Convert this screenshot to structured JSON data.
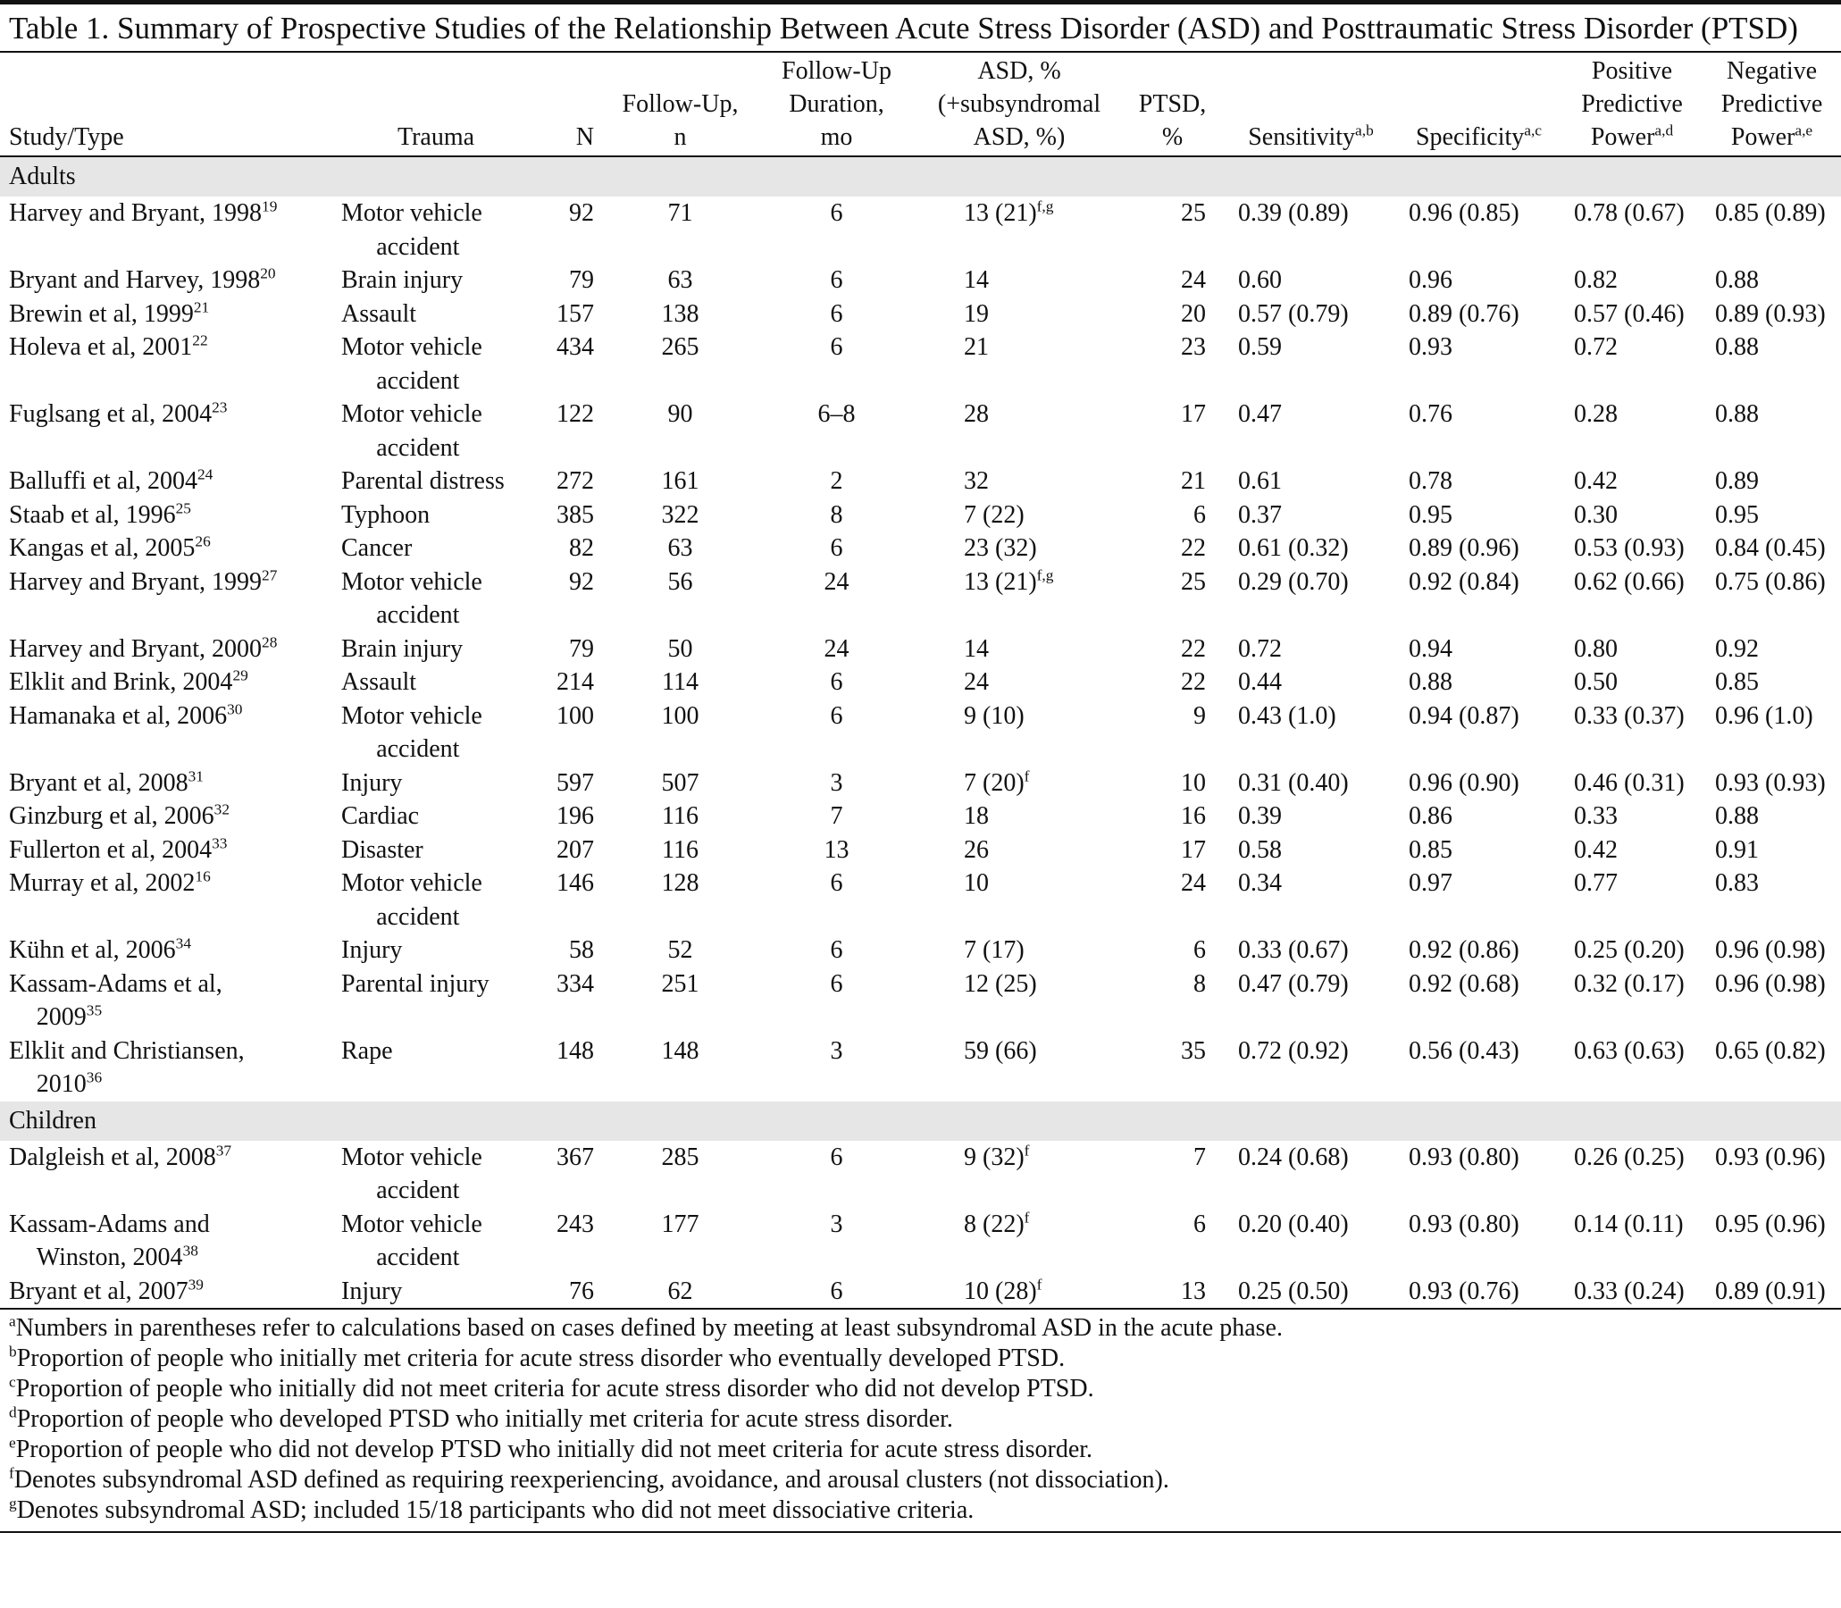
{
  "title": "Table 1. Summary of Prospective Studies of the Relationship Between Acute Stress Disorder (ASD) and Posttraumatic Stress Disorder (PTSD)",
  "columns": [
    {
      "lines": [
        "Study/Type"
      ]
    },
    {
      "lines": [
        "Trauma"
      ]
    },
    {
      "lines": [
        "N"
      ]
    },
    {
      "lines": [
        "Follow-Up,",
        "n"
      ]
    },
    {
      "lines": [
        "Follow-Up",
        "Duration,",
        "mo"
      ]
    },
    {
      "lines": [
        "ASD, %",
        "(+subsyndromal",
        "ASD, %)"
      ]
    },
    {
      "lines": [
        "PTSD,",
        "%"
      ]
    },
    {
      "lines": [
        "Sensitivity"
      ],
      "sup": "a,b"
    },
    {
      "lines": [
        "Specificity"
      ],
      "sup": "a,c"
    },
    {
      "lines": [
        "Positive",
        "Predictive",
        "Power"
      ],
      "sup": "a,d"
    },
    {
      "lines": [
        "Negative",
        "Predictive",
        "Power"
      ],
      "sup": "a,e"
    }
  ],
  "sections": [
    {
      "label": "Adults",
      "rows": [
        {
          "study": [
            "Harvey and Bryant, 1998"
          ],
          "ref": "19",
          "trauma": [
            "Motor vehicle",
            "accident"
          ],
          "n": "92",
          "follow_up": "71",
          "duration": "6",
          "asd": "13 (21)",
          "asd_note": "f,g",
          "ptsd": "25",
          "sensitivity": "0.39 (0.89)",
          "specificity": "0.96 (0.85)",
          "ppp": "0.78 (0.67)",
          "npp": "0.85 (0.89)"
        },
        {
          "study": [
            "Bryant and Harvey, 1998"
          ],
          "ref": "20",
          "trauma": [
            "Brain injury"
          ],
          "n": "79",
          "follow_up": "63",
          "duration": "6",
          "asd": "14",
          "ptsd": "24",
          "sensitivity": "0.60",
          "specificity": "0.96",
          "ppp": "0.82",
          "npp": "0.88"
        },
        {
          "study": [
            "Brewin et al, 1999"
          ],
          "ref": "21",
          "trauma": [
            "Assault"
          ],
          "n": "157",
          "follow_up": "138",
          "duration": "6",
          "asd": "19",
          "ptsd": "20",
          "sensitivity": "0.57 (0.79)",
          "specificity": "0.89 (0.76)",
          "ppp": "0.57 (0.46)",
          "npp": "0.89 (0.93)"
        },
        {
          "study": [
            "Holeva et al, 2001"
          ],
          "ref": "22",
          "trauma": [
            "Motor vehicle",
            "accident"
          ],
          "n": "434",
          "follow_up": "265",
          "duration": "6",
          "asd": "21",
          "ptsd": "23",
          "sensitivity": "0.59",
          "specificity": "0.93",
          "ppp": "0.72",
          "npp": "0.88"
        },
        {
          "study": [
            "Fuglsang et al, 2004"
          ],
          "ref": "23",
          "trauma": [
            "Motor vehicle",
            "accident"
          ],
          "n": "122",
          "follow_up": "90",
          "duration": "6–8",
          "asd": "28",
          "ptsd": "17",
          "sensitivity": "0.47",
          "specificity": "0.76",
          "ppp": "0.28",
          "npp": "0.88"
        },
        {
          "study": [
            "Balluffi et al, 2004"
          ],
          "ref": "24",
          "trauma": [
            "Parental distress"
          ],
          "n": "272",
          "follow_up": "161",
          "duration": "2",
          "asd": "32",
          "ptsd": "21",
          "sensitivity": "0.61",
          "specificity": "0.78",
          "ppp": "0.42",
          "npp": "0.89"
        },
        {
          "study": [
            "Staab et al, 1996"
          ],
          "ref": "25",
          "trauma": [
            "Typhoon"
          ],
          "n": "385",
          "follow_up": "322",
          "duration": "8",
          "asd": "7 (22)",
          "ptsd": "6",
          "sensitivity": "0.37",
          "specificity": "0.95",
          "ppp": "0.30",
          "npp": "0.95"
        },
        {
          "study": [
            "Kangas et al, 2005"
          ],
          "ref": "26",
          "trauma": [
            "Cancer"
          ],
          "n": "82",
          "follow_up": "63",
          "duration": "6",
          "asd": "23 (32)",
          "ptsd": "22",
          "sensitivity": "0.61 (0.32)",
          "specificity": "0.89 (0.96)",
          "ppp": "0.53 (0.93)",
          "npp": "0.84 (0.45)"
        },
        {
          "study": [
            "Harvey and Bryant, 1999"
          ],
          "ref": "27",
          "trauma": [
            "Motor vehicle",
            "accident"
          ],
          "n": "92",
          "follow_up": "56",
          "duration": "24",
          "asd": "13 (21)",
          "asd_note": "f,g",
          "ptsd": "25",
          "sensitivity": "0.29 (0.70)",
          "specificity": "0.92 (0.84)",
          "ppp": "0.62 (0.66)",
          "npp": "0.75 (0.86)"
        },
        {
          "study": [
            "Harvey and Bryant, 2000"
          ],
          "ref": "28",
          "trauma": [
            "Brain injury"
          ],
          "n": "79",
          "follow_up": "50",
          "duration": "24",
          "asd": "14",
          "ptsd": "22",
          "sensitivity": "0.72",
          "specificity": "0.94",
          "ppp": "0.80",
          "npp": "0.92"
        },
        {
          "study": [
            "Elklit and Brink, 2004"
          ],
          "ref": "29",
          "trauma": [
            "Assault"
          ],
          "n": "214",
          "follow_up": "114",
          "duration": "6",
          "asd": "24",
          "ptsd": "22",
          "sensitivity": "0.44",
          "specificity": "0.88",
          "ppp": "0.50",
          "npp": "0.85"
        },
        {
          "study": [
            "Hamanaka et al, 2006"
          ],
          "ref": "30",
          "trauma": [
            "Motor vehicle",
            "accident"
          ],
          "n": "100",
          "follow_up": "100",
          "duration": "6",
          "asd": "9 (10)",
          "ptsd": "9",
          "sensitivity": "0.43 (1.0)",
          "specificity": "0.94 (0.87)",
          "ppp": "0.33 (0.37)",
          "npp": "0.96 (1.0)"
        },
        {
          "study": [
            "Bryant et al, 2008"
          ],
          "ref": "31",
          "trauma": [
            "Injury"
          ],
          "n": "597",
          "follow_up": "507",
          "duration": "3",
          "asd": "7 (20)",
          "asd_note": "f",
          "ptsd": "10",
          "sensitivity": "0.31 (0.40)",
          "specificity": "0.96 (0.90)",
          "ppp": "0.46 (0.31)",
          "npp": "0.93 (0.93)"
        },
        {
          "study": [
            "Ginzburg et al, 2006"
          ],
          "ref": "32",
          "trauma": [
            "Cardiac"
          ],
          "n": "196",
          "follow_up": "116",
          "duration": "7",
          "asd": "18",
          "ptsd": "16",
          "sensitivity": "0.39",
          "specificity": "0.86",
          "ppp": "0.33",
          "npp": "0.88"
        },
        {
          "study": [
            "Fullerton et al, 2004"
          ],
          "ref": "33",
          "trauma": [
            "Disaster"
          ],
          "n": "207",
          "follow_up": "116",
          "duration": "13",
          "asd": "26",
          "ptsd": "17",
          "sensitivity": "0.58",
          "specificity": "0.85",
          "ppp": "0.42",
          "npp": "0.91"
        },
        {
          "study": [
            "Murray et al, 2002"
          ],
          "ref": "16",
          "trauma": [
            "Motor vehicle",
            "accident"
          ],
          "n": "146",
          "follow_up": "128",
          "duration": "6",
          "asd": "10",
          "ptsd": "24",
          "sensitivity": "0.34",
          "specificity": "0.97",
          "ppp": "0.77",
          "npp": "0.83"
        },
        {
          "study": [
            "Kühn et al, 2006"
          ],
          "ref": "34",
          "trauma": [
            "Injury"
          ],
          "n": "58",
          "follow_up": "52",
          "duration": "6",
          "asd": "7 (17)",
          "ptsd": "6",
          "sensitivity": "0.33 (0.67)",
          "specificity": "0.92 (0.86)",
          "ppp": "0.25 (0.20)",
          "npp": "0.96 (0.98)"
        },
        {
          "study": [
            "Kassam-Adams et al,",
            "2009"
          ],
          "ref": "35",
          "trauma": [
            "Parental injury"
          ],
          "n": "334",
          "follow_up": "251",
          "duration": "6",
          "asd": "12 (25)",
          "ptsd": "8",
          "sensitivity": "0.47 (0.79)",
          "specificity": "0.92 (0.68)",
          "ppp": "0.32 (0.17)",
          "npp": "0.96 (0.98)"
        },
        {
          "study": [
            "Elklit and Christiansen,",
            "2010"
          ],
          "ref": "36",
          "trauma": [
            "Rape"
          ],
          "n": "148",
          "follow_up": "148",
          "duration": "3",
          "asd": "59 (66)",
          "ptsd": "35",
          "sensitivity": "0.72 (0.92)",
          "specificity": "0.56 (0.43)",
          "ppp": "0.63 (0.63)",
          "npp": "0.65 (0.82)"
        }
      ]
    },
    {
      "label": "Children",
      "rows": [
        {
          "study": [
            "Dalgleish et al, 2008"
          ],
          "ref": "37",
          "trauma": [
            "Motor vehicle",
            "accident"
          ],
          "n": "367",
          "follow_up": "285",
          "duration": "6",
          "asd": "9 (32)",
          "asd_note": "f",
          "ptsd": "7",
          "sensitivity": "0.24 (0.68)",
          "specificity": "0.93 (0.80)",
          "ppp": "0.26 (0.25)",
          "npp": "0.93 (0.96)"
        },
        {
          "study": [
            "Kassam-Adams and",
            "Winston, 2004"
          ],
          "ref": "38",
          "trauma": [
            "Motor vehicle",
            "accident"
          ],
          "n": "243",
          "follow_up": "177",
          "duration": "3",
          "asd": "8 (22)",
          "asd_note": "f",
          "ptsd": "6",
          "sensitivity": "0.20 (0.40)",
          "specificity": "0.93 (0.80)",
          "ppp": "0.14 (0.11)",
          "npp": "0.95 (0.96)"
        },
        {
          "study": [
            "Bryant et al, 2007"
          ],
          "ref": "39",
          "trauma": [
            "Injury"
          ],
          "n": "76",
          "follow_up": "62",
          "duration": "6",
          "asd": "10 (28)",
          "asd_note": "f",
          "ptsd": "13",
          "sensitivity": "0.25 (0.50)",
          "specificity": "0.93 (0.76)",
          "ppp": "0.33 (0.24)",
          "npp": "0.89 (0.91)"
        }
      ]
    }
  ],
  "footnotes": [
    {
      "mark": "a",
      "text": "Numbers in parentheses refer to calculations based on cases defined by meeting at least subsyndromal ASD in the acute phase."
    },
    {
      "mark": "b",
      "text": "Proportion of people who initially met criteria for acute stress disorder who eventually developed PTSD."
    },
    {
      "mark": "c",
      "text": "Proportion of people who initially did not meet criteria for acute stress disorder who did not develop PTSD."
    },
    {
      "mark": "d",
      "text": "Proportion of people who developed PTSD who initially met criteria for acute stress disorder."
    },
    {
      "mark": "e",
      "text": "Proportion of people who did not develop PTSD who initially did not meet criteria for acute stress disorder."
    },
    {
      "mark": "f",
      "text": "Denotes subsyndromal ASD defined as requiring reexperiencing, avoidance, and arousal clusters (not dissociation)."
    },
    {
      "mark": "g",
      "text": "Denotes subsyndromal ASD; included 15/18 participants who did not meet dissociative criteria."
    }
  ]
}
